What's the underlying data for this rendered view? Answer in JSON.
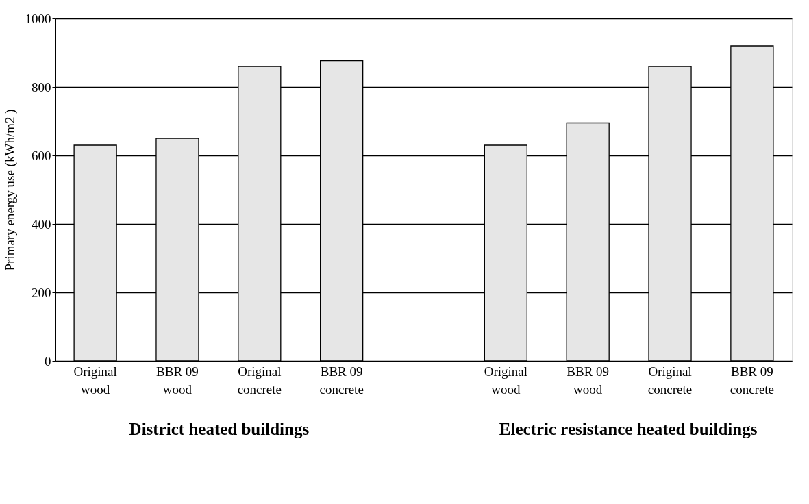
{
  "chart_data": {
    "type": "bar",
    "ylabel": "Primary energy use (kWh/m2 )",
    "categories": [
      "Original wood",
      "BBR 09 wood",
      "Original concrete",
      "BBR 09 concrete",
      null,
      "Original wood",
      "BBR 09 wood",
      "Original concrete",
      "BBR 09 concrete"
    ],
    "values": [
      630,
      650,
      860,
      877,
      null,
      630,
      695,
      860,
      920
    ],
    "color": "#e6e6e6",
    "ylim": [
      0,
      1000
    ],
    "yticks": [
      0,
      200,
      400,
      600,
      800,
      1000
    ],
    "grid": "y",
    "annotations": [
      "District heated buildings",
      "Electric resistance heated buildings"
    ]
  }
}
